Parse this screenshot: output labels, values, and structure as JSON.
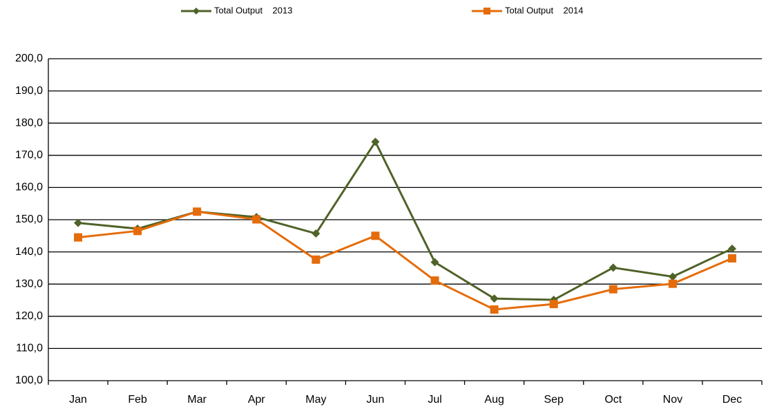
{
  "chart_data": {
    "type": "line",
    "categories": [
      "Jan",
      "Feb",
      "Mar",
      "Apr",
      "May",
      "Jun",
      "Jul",
      "Aug",
      "Sep",
      "Oct",
      "Nov",
      "Dec"
    ],
    "series": [
      {
        "name": "Total Output    2013",
        "color": "#4f6228",
        "marker": "diamond",
        "values": [
          149.0,
          147.2,
          152.5,
          150.8,
          145.7,
          174.2,
          136.8,
          125.5,
          125.1,
          135.1,
          132.3,
          141.0
        ]
      },
      {
        "name": "Total Output    2014",
        "color": "#e46c0a",
        "marker": "square",
        "values": [
          144.5,
          146.5,
          152.5,
          150.1,
          137.6,
          145.0,
          131.1,
          122.1,
          123.8,
          128.4,
          130.1,
          138.0
        ]
      }
    ],
    "ylim": [
      100,
      200
    ],
    "yticks": [
      {
        "value": 100,
        "label": "100,0"
      },
      {
        "value": 110,
        "label": "110,0"
      },
      {
        "value": 120,
        "label": "120,0"
      },
      {
        "value": 130,
        "label": "130,0"
      },
      {
        "value": 140,
        "label": "140,0"
      },
      {
        "value": 150,
        "label": "150,0"
      },
      {
        "value": 160,
        "label": "160,0"
      },
      {
        "value": 170,
        "label": "170,0"
      },
      {
        "value": 180,
        "label": "180,0"
      },
      {
        "value": 190,
        "label": "190,0"
      },
      {
        "value": 200,
        "label": "200,0"
      }
    ],
    "grid": true,
    "legend": "top"
  }
}
